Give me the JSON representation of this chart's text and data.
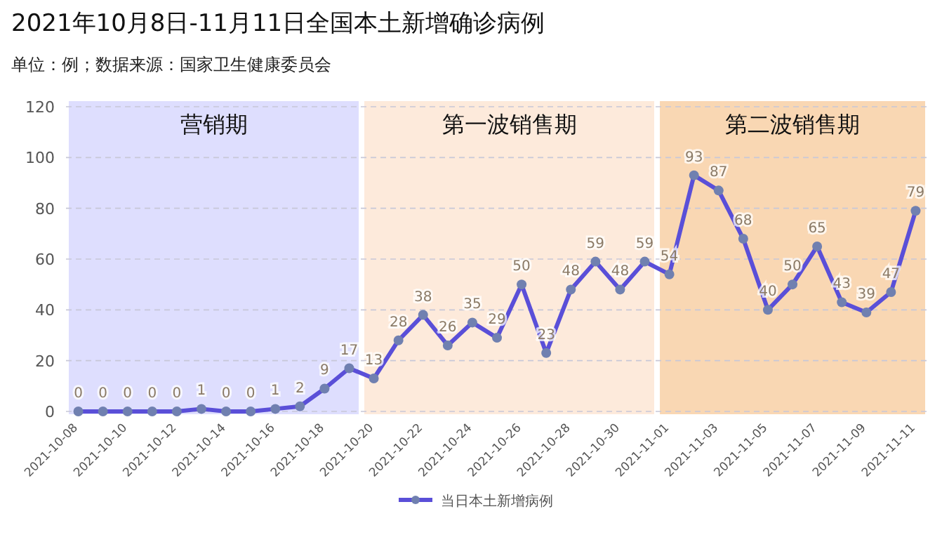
{
  "chart_data": {
    "type": "line",
    "title": "2021年10月8日-11月11日全国本土新增确诊病例",
    "subtitle": "单位：例；数据来源：国家卫生健康委员会",
    "x": [
      "2021-10-08",
      "2021-10-09",
      "2021-10-10",
      "2021-10-11",
      "2021-10-12",
      "2021-10-13",
      "2021-10-14",
      "2021-10-15",
      "2021-10-16",
      "2021-10-17",
      "2021-10-18",
      "2021-10-19",
      "2021-10-20",
      "2021-10-21",
      "2021-10-22",
      "2021-10-23",
      "2021-10-24",
      "2021-10-25",
      "2021-10-26",
      "2021-10-27",
      "2021-10-28",
      "2021-10-29",
      "2021-10-30",
      "2021-10-31",
      "2021-11-01",
      "2021-11-02",
      "2021-11-03",
      "2021-11-04",
      "2021-11-05",
      "2021-11-06",
      "2021-11-07",
      "2021-11-08",
      "2021-11-09",
      "2021-11-10",
      "2021-11-11"
    ],
    "series": [
      {
        "name": "当日本土新增病例",
        "color": "#5a4fd8",
        "values": [
          0,
          0,
          0,
          0,
          0,
          1,
          0,
          0,
          1,
          2,
          9,
          17,
          13,
          28,
          38,
          26,
          35,
          29,
          50,
          23,
          48,
          59,
          48,
          59,
          54,
          93,
          87,
          68,
          40,
          50,
          65,
          43,
          39,
          47,
          79
        ]
      }
    ],
    "xlim": [
      "2021-10-07T12:00",
      "2021-11-11T12:00"
    ],
    "xticks": [
      "2021-10-08",
      "2021-10-10",
      "2021-10-12",
      "2021-10-14",
      "2021-10-16",
      "2021-10-18",
      "2021-10-20",
      "2021-10-22",
      "2021-10-24",
      "2021-10-26",
      "2021-10-28",
      "2021-10-30",
      "2021-11-01",
      "2021-11-03",
      "2021-11-05",
      "2021-11-07",
      "2021-11-09",
      "2021-11-11"
    ],
    "ylim": [
      0,
      120
    ],
    "yticks": [
      0,
      20,
      40,
      60,
      80,
      100,
      120
    ],
    "bands": [
      {
        "axis": "x",
        "from": "2021-10-07T12:00",
        "to": "2021-10-19T12:00",
        "label": "营销期",
        "color": "#dedefe"
      },
      {
        "axis": "x",
        "from": "2021-10-19T12:00",
        "to": "2021-10-31T12:00",
        "label": "第一波销售期",
        "color": "#fdeadb"
      },
      {
        "axis": "x",
        "from": "2021-10-31T12:00",
        "to": "2021-11-11T12:00",
        "label": "第二波销售期",
        "color": "#f9d7b3"
      }
    ],
    "data_labels": true,
    "marker": "circle",
    "line_style": "solid",
    "grid": "y",
    "legend": "bottom"
  }
}
